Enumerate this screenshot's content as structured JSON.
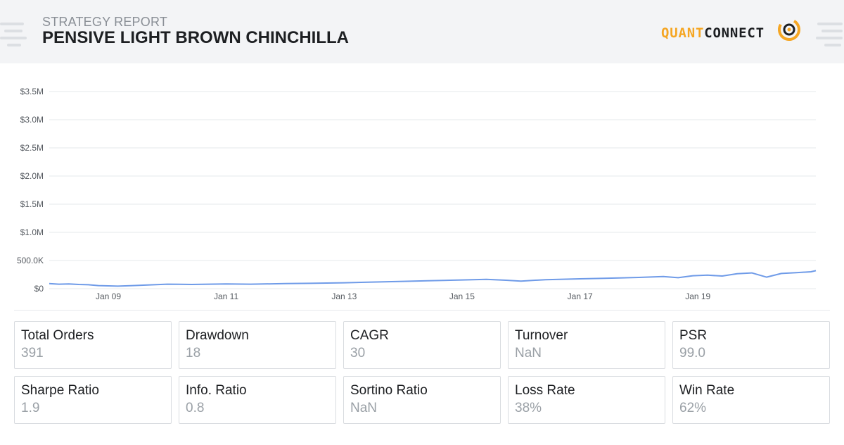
{
  "header": {
    "report_label": "STRATEGY REPORT",
    "title": "PENSIVE LIGHT BROWN CHINCHILLA",
    "logo": {
      "part1": "QUANT",
      "part2": "CONNECT",
      "color_part1": "#f5a623",
      "color_part2": "#1d1f22",
      "icon": "quantconnect-logo-mark"
    }
  },
  "colors": {
    "line": "#6f9be8",
    "grid": "#e6e8eb",
    "header_bg": "#f3f4f6"
  },
  "chart_data": {
    "type": "line",
    "title": "",
    "xlabel": "",
    "ylabel": "",
    "ylim": [
      0,
      3500000
    ],
    "y_ticks": [
      0,
      500000,
      1000000,
      1500000,
      2000000,
      2500000,
      3000000,
      3500000
    ],
    "y_tick_labels": [
      "$0",
      "500.0K",
      "$1.0M",
      "$1.5M",
      "$2.0M",
      "$2.5M",
      "$3.0M",
      "$3.5M"
    ],
    "xlim": [
      "2008-01-01",
      "2021-01-01"
    ],
    "x_ticks": [
      "2009-01-01",
      "2011-01-01",
      "2013-01-01",
      "2015-01-01",
      "2017-01-01",
      "2019-01-01"
    ],
    "x_tick_labels": [
      "Jan 09",
      "Jan 11",
      "Jan 13",
      "Jan 15",
      "Jan 17",
      "Jan 19"
    ],
    "grid": true,
    "series": [
      {
        "x": [
          "2008-01-01",
          "2008-03-01",
          "2008-05-01",
          "2008-07-01",
          "2008-09-01",
          "2008-11-01",
          "2009-01-01",
          "2009-03-01",
          "2009-06-01",
          "2009-09-01",
          "2010-01-01",
          "2010-06-01",
          "2011-01-01",
          "2011-06-01",
          "2012-01-01",
          "2012-06-01",
          "2013-01-01",
          "2013-06-01",
          "2014-01-01",
          "2014-06-01",
          "2015-01-01",
          "2015-06-01",
          "2015-10-01",
          "2016-01-01",
          "2016-06-01",
          "2017-01-01",
          "2017-06-01",
          "2018-01-01",
          "2018-06-01",
          "2018-09-01",
          "2018-12-01",
          "2019-03-01",
          "2019-06-01",
          "2019-09-01",
          "2019-12-01",
          "2020-03-01",
          "2020-06-01",
          "2020-09-01",
          "2020-12-01",
          "2021-01-01"
        ],
        "values": [
          90000,
          80000,
          85000,
          75000,
          70000,
          55000,
          50000,
          45000,
          55000,
          65000,
          80000,
          75000,
          85000,
          80000,
          90000,
          95000,
          105000,
          115000,
          130000,
          140000,
          155000,
          165000,
          150000,
          135000,
          160000,
          175000,
          185000,
          200000,
          215000,
          195000,
          230000,
          240000,
          225000,
          265000,
          280000,
          205000,
          270000,
          285000,
          300000,
          320000
        ]
      }
    ]
  },
  "stats": [
    {
      "label": "Total Orders",
      "value": "391"
    },
    {
      "label": "Drawdown",
      "value": "18"
    },
    {
      "label": "CAGR",
      "value": "30"
    },
    {
      "label": "Turnover",
      "value": "NaN"
    },
    {
      "label": "PSR",
      "value": "99.0"
    },
    {
      "label": "Sharpe Ratio",
      "value": "1.9"
    },
    {
      "label": "Info. Ratio",
      "value": "0.8"
    },
    {
      "label": "Sortino Ratio",
      "value": "NaN"
    },
    {
      "label": "Loss Rate",
      "value": "38%"
    },
    {
      "label": "Win Rate",
      "value": "62%"
    }
  ]
}
